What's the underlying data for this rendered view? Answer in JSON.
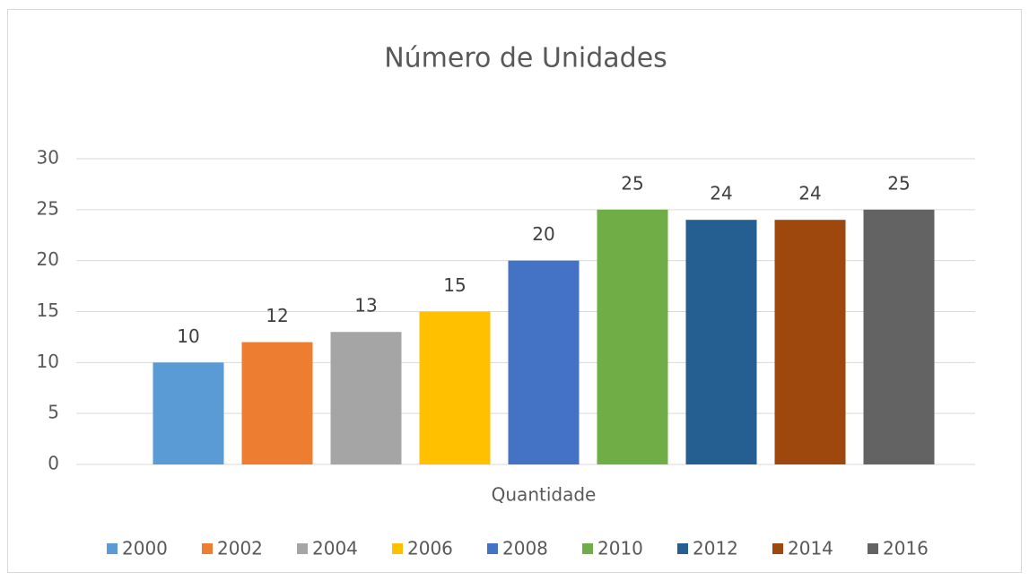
{
  "chart_data": {
    "type": "bar",
    "title": "Número de Unidades",
    "categories": [
      "Quantidade"
    ],
    "series": [
      {
        "name": "2000",
        "color": "#5b9bd5",
        "values": [
          10
        ]
      },
      {
        "name": "2002",
        "color": "#ed7d31",
        "values": [
          12
        ]
      },
      {
        "name": "2004",
        "color": "#a5a5a5",
        "values": [
          13
        ]
      },
      {
        "name": "2006",
        "color": "#ffc000",
        "values": [
          15
        ]
      },
      {
        "name": "2008",
        "color": "#4472c4",
        "values": [
          20
        ]
      },
      {
        "name": "2010",
        "color": "#70ad47",
        "values": [
          25
        ]
      },
      {
        "name": "2012",
        "color": "#255e91",
        "values": [
          24
        ]
      },
      {
        "name": "2014",
        "color": "#9e480e",
        "values": [
          24
        ]
      },
      {
        "name": "2016",
        "color": "#636363",
        "values": [
          25
        ]
      }
    ],
    "ylim": [
      0,
      30
    ],
    "yticks": [
      0,
      5,
      10,
      15,
      20,
      25,
      30
    ],
    "grid": true,
    "legend": "bottom"
  }
}
